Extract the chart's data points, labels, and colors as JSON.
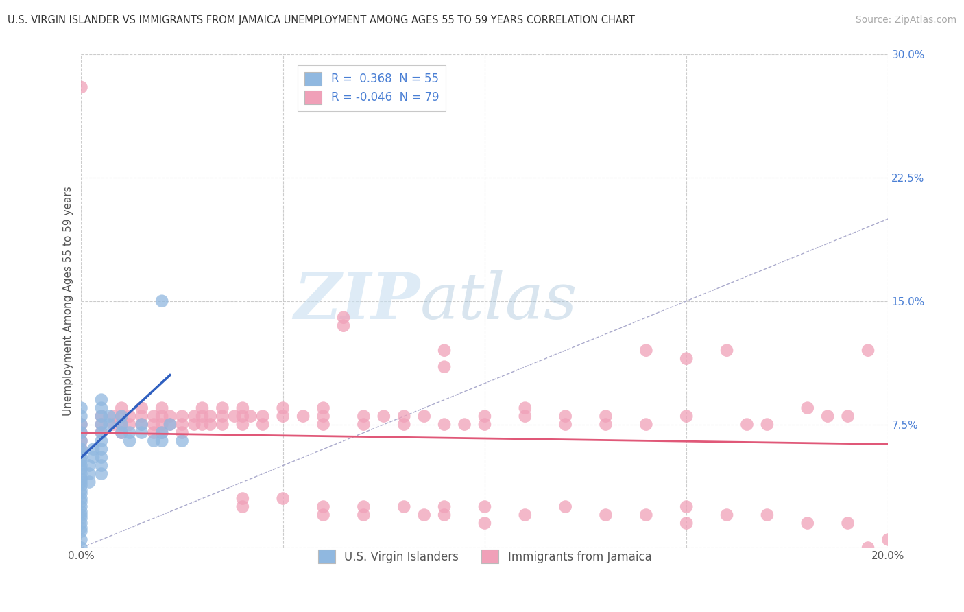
{
  "title": "U.S. VIRGIN ISLANDER VS IMMIGRANTS FROM JAMAICA UNEMPLOYMENT AMONG AGES 55 TO 59 YEARS CORRELATION CHART",
  "source": "Source: ZipAtlas.com",
  "ylabel": "Unemployment Among Ages 55 to 59 years",
  "xlim": [
    0.0,
    0.2
  ],
  "ylim": [
    0.0,
    0.3
  ],
  "xticks": [
    0.0,
    0.05,
    0.1,
    0.15,
    0.2
  ],
  "xticklabels": [
    "0.0%",
    "",
    "",
    "",
    "20.0%"
  ],
  "yticks": [
    0.0,
    0.075,
    0.15,
    0.225,
    0.3
  ],
  "yticklabels": [
    "",
    "7.5%",
    "15.0%",
    "22.5%",
    "30.0%"
  ],
  "legend_label1": "U.S. Virgin Islanders",
  "legend_label2": "Immigrants from Jamaica",
  "color_blue": "#90b8e0",
  "color_pink": "#f0a0b8",
  "line_blue": "#3060c0",
  "line_pink": "#e05878",
  "diag_color": "#aaaacc",
  "watermark_zip": "ZIP",
  "watermark_atlas": "atlas",
  "background": "#ffffff",
  "grid_color": "#cccccc",
  "blue_scatter": [
    [
      0.0,
      0.0
    ],
    [
      0.0,
      0.005
    ],
    [
      0.0,
      0.01
    ],
    [
      0.0,
      0.012
    ],
    [
      0.0,
      0.015
    ],
    [
      0.0,
      0.018
    ],
    [
      0.0,
      0.02
    ],
    [
      0.0,
      0.022
    ],
    [
      0.0,
      0.025
    ],
    [
      0.0,
      0.028
    ],
    [
      0.0,
      0.03
    ],
    [
      0.0,
      0.033
    ],
    [
      0.0,
      0.035
    ],
    [
      0.0,
      0.038
    ],
    [
      0.0,
      0.04
    ],
    [
      0.0,
      0.042
    ],
    [
      0.0,
      0.045
    ],
    [
      0.0,
      0.048
    ],
    [
      0.0,
      0.05
    ],
    [
      0.0,
      0.053
    ],
    [
      0.0,
      0.055
    ],
    [
      0.0,
      0.058
    ],
    [
      0.0,
      0.06
    ],
    [
      0.0,
      0.065
    ],
    [
      0.0,
      0.07
    ],
    [
      0.0,
      0.075
    ],
    [
      0.0,
      0.08
    ],
    [
      0.0,
      0.085
    ],
    [
      0.005,
      0.055
    ],
    [
      0.005,
      0.06
    ],
    [
      0.005,
      0.065
    ],
    [
      0.005,
      0.07
    ],
    [
      0.005,
      0.075
    ],
    [
      0.005,
      0.08
    ],
    [
      0.005,
      0.085
    ],
    [
      0.005,
      0.09
    ],
    [
      0.007,
      0.075
    ],
    [
      0.007,
      0.08
    ],
    [
      0.01,
      0.07
    ],
    [
      0.01,
      0.075
    ],
    [
      0.01,
      0.08
    ],
    [
      0.012,
      0.065
    ],
    [
      0.012,
      0.07
    ],
    [
      0.015,
      0.07
    ],
    [
      0.015,
      0.075
    ],
    [
      0.018,
      0.065
    ],
    [
      0.02,
      0.065
    ],
    [
      0.02,
      0.07
    ],
    [
      0.022,
      0.075
    ],
    [
      0.025,
      0.065
    ],
    [
      0.005,
      0.045
    ],
    [
      0.005,
      0.05
    ],
    [
      0.003,
      0.06
    ],
    [
      0.003,
      0.055
    ],
    [
      0.002,
      0.04
    ],
    [
      0.002,
      0.045
    ],
    [
      0.002,
      0.05
    ],
    [
      0.02,
      0.15
    ]
  ],
  "pink_scatter": [
    [
      0.0,
      0.07
    ],
    [
      0.0,
      0.075
    ],
    [
      0.0,
      0.065
    ],
    [
      0.0,
      0.06
    ],
    [
      0.005,
      0.08
    ],
    [
      0.005,
      0.075
    ],
    [
      0.005,
      0.07
    ],
    [
      0.008,
      0.08
    ],
    [
      0.008,
      0.075
    ],
    [
      0.01,
      0.085
    ],
    [
      0.01,
      0.08
    ],
    [
      0.01,
      0.075
    ],
    [
      0.01,
      0.07
    ],
    [
      0.012,
      0.08
    ],
    [
      0.012,
      0.075
    ],
    [
      0.015,
      0.085
    ],
    [
      0.015,
      0.08
    ],
    [
      0.015,
      0.075
    ],
    [
      0.018,
      0.08
    ],
    [
      0.018,
      0.075
    ],
    [
      0.018,
      0.07
    ],
    [
      0.02,
      0.085
    ],
    [
      0.02,
      0.08
    ],
    [
      0.02,
      0.075
    ],
    [
      0.02,
      0.07
    ],
    [
      0.022,
      0.08
    ],
    [
      0.022,
      0.075
    ],
    [
      0.025,
      0.08
    ],
    [
      0.025,
      0.075
    ],
    [
      0.025,
      0.07
    ],
    [
      0.028,
      0.08
    ],
    [
      0.028,
      0.075
    ],
    [
      0.03,
      0.085
    ],
    [
      0.03,
      0.08
    ],
    [
      0.03,
      0.075
    ],
    [
      0.032,
      0.08
    ],
    [
      0.032,
      0.075
    ],
    [
      0.035,
      0.085
    ],
    [
      0.035,
      0.08
    ],
    [
      0.035,
      0.075
    ],
    [
      0.038,
      0.08
    ],
    [
      0.04,
      0.085
    ],
    [
      0.04,
      0.08
    ],
    [
      0.04,
      0.075
    ],
    [
      0.042,
      0.08
    ],
    [
      0.045,
      0.08
    ],
    [
      0.045,
      0.075
    ],
    [
      0.05,
      0.085
    ],
    [
      0.05,
      0.08
    ],
    [
      0.055,
      0.08
    ],
    [
      0.06,
      0.085
    ],
    [
      0.06,
      0.08
    ],
    [
      0.06,
      0.075
    ],
    [
      0.065,
      0.14
    ],
    [
      0.07,
      0.08
    ],
    [
      0.07,
      0.075
    ],
    [
      0.075,
      0.08
    ],
    [
      0.08,
      0.08
    ],
    [
      0.08,
      0.075
    ],
    [
      0.085,
      0.08
    ],
    [
      0.09,
      0.075
    ],
    [
      0.095,
      0.075
    ],
    [
      0.1,
      0.08
    ],
    [
      0.1,
      0.075
    ],
    [
      0.11,
      0.085
    ],
    [
      0.11,
      0.08
    ],
    [
      0.12,
      0.08
    ],
    [
      0.12,
      0.075
    ],
    [
      0.13,
      0.08
    ],
    [
      0.13,
      0.075
    ],
    [
      0.14,
      0.12
    ],
    [
      0.14,
      0.075
    ],
    [
      0.15,
      0.115
    ],
    [
      0.15,
      0.08
    ],
    [
      0.16,
      0.12
    ],
    [
      0.165,
      0.075
    ],
    [
      0.17,
      0.075
    ],
    [
      0.18,
      0.085
    ],
    [
      0.185,
      0.08
    ],
    [
      0.19,
      0.08
    ],
    [
      0.195,
      0.12
    ],
    [
      0.04,
      0.03
    ],
    [
      0.04,
      0.025
    ],
    [
      0.05,
      0.03
    ],
    [
      0.06,
      0.025
    ],
    [
      0.06,
      0.02
    ],
    [
      0.07,
      0.025
    ],
    [
      0.07,
      0.02
    ],
    [
      0.08,
      0.025
    ],
    [
      0.085,
      0.02
    ],
    [
      0.09,
      0.025
    ],
    [
      0.09,
      0.02
    ],
    [
      0.1,
      0.025
    ],
    [
      0.1,
      0.015
    ],
    [
      0.11,
      0.02
    ],
    [
      0.12,
      0.025
    ],
    [
      0.13,
      0.02
    ],
    [
      0.14,
      0.02
    ],
    [
      0.15,
      0.025
    ],
    [
      0.15,
      0.015
    ],
    [
      0.16,
      0.02
    ],
    [
      0.17,
      0.02
    ],
    [
      0.18,
      0.015
    ],
    [
      0.19,
      0.015
    ],
    [
      0.2,
      0.005
    ],
    [
      0.195,
      0.0
    ],
    [
      0.0,
      0.28
    ],
    [
      0.065,
      0.135
    ],
    [
      0.09,
      0.11
    ],
    [
      0.09,
      0.12
    ]
  ]
}
